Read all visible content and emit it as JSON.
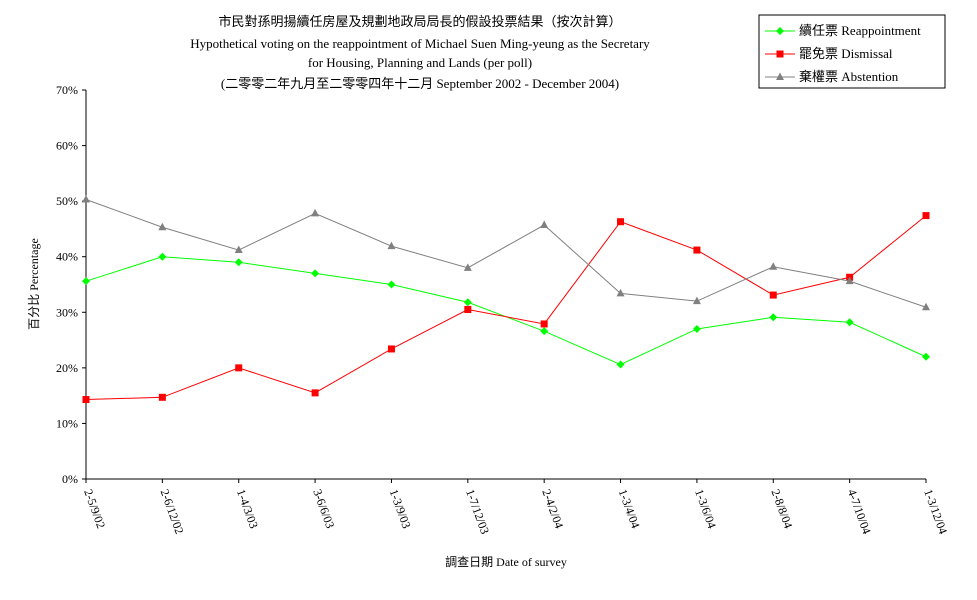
{
  "chart_data": {
    "type": "line",
    "title_lines": [
      "市民對孫明揚續任房屋及規劃地政局局長的假設投票結果（按次計算）",
      "Hypothetical voting on the reappointment of Michael Suen Ming-yeung as the Secretary",
      "for Housing, Planning and Lands (per poll)",
      "(二零零二年九月至二零零四年十二月 September 2002 - December 2004)"
    ],
    "xlabel": "調查日期 Date of survey",
    "ylabel": "百分比 Percentage",
    "categories": [
      "2-5/9/02",
      "2-6/12/02",
      "1-4/3/03",
      "3-6/6/03",
      "1-3/9/03",
      "1-7/12/03",
      "2-4/2/04",
      "1-3/4/04",
      "1-3/6/04",
      "2-8/8/04",
      "4-7/10/04",
      "1-3/12/04"
    ],
    "y_ticks": [
      "0%",
      "10%",
      "20%",
      "30%",
      "40%",
      "50%",
      "60%",
      "70%"
    ],
    "ylim": [
      0,
      70
    ],
    "grid": false,
    "legend_position": "top-right",
    "series": [
      {
        "name": "續任票 Reappointment",
        "color": "#00ff00",
        "marker": "diamond",
        "values": [
          35.6,
          40.0,
          39.0,
          37.0,
          35.0,
          31.8,
          26.6,
          20.6,
          27.0,
          29.1,
          28.2,
          22.0
        ]
      },
      {
        "name": "罷免票 Dismissal",
        "color": "#ff0000",
        "marker": "square",
        "values": [
          14.3,
          14.7,
          20.0,
          15.5,
          23.4,
          30.5,
          27.9,
          46.3,
          41.2,
          33.1,
          36.3,
          47.4
        ]
      },
      {
        "name": "棄權票 Abstention",
        "color": "#808080",
        "marker": "triangle",
        "values": [
          50.3,
          45.3,
          41.2,
          47.8,
          41.9,
          38.0,
          45.7,
          33.4,
          32.0,
          38.2,
          35.6,
          30.9
        ]
      }
    ]
  }
}
